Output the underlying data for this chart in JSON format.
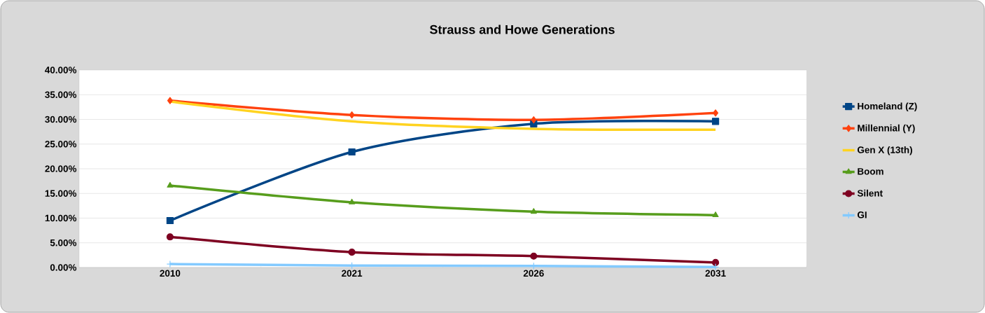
{
  "chart_data": {
    "type": "line",
    "title": "Strauss and Howe Generations",
    "categories": [
      "2010",
      "2021",
      "2026",
      "2031"
    ],
    "series": [
      {
        "name": "Homeland (Z)",
        "color": "#004586",
        "marker": "square",
        "values": [
          9.5,
          23.4,
          29.1,
          29.6
        ]
      },
      {
        "name": "Millennial (Y)",
        "color": "#ff420e",
        "marker": "diamond",
        "values": [
          33.8,
          30.9,
          29.9,
          31.3
        ]
      },
      {
        "name": "Gen X (13th)",
        "color": "#ffd320",
        "marker": "none",
        "values": [
          33.6,
          29.6,
          28.1,
          27.9
        ]
      },
      {
        "name": "Boom",
        "color": "#579d1c",
        "marker": "triangle",
        "values": [
          16.6,
          13.2,
          11.3,
          10.6
        ]
      },
      {
        "name": "Silent",
        "color": "#7e0021",
        "marker": "circle",
        "values": [
          6.2,
          3.1,
          2.3,
          1.0
        ]
      },
      {
        "name": "GI",
        "color": "#83caff",
        "marker": "cross",
        "values": [
          0.7,
          0.4,
          0.3,
          0.1
        ]
      }
    ],
    "ylim": [
      0,
      40
    ],
    "yticks": [
      {
        "value": 0,
        "label": "0.00%"
      },
      {
        "value": 5,
        "label": "5.00%"
      },
      {
        "value": 10,
        "label": "10.00%"
      },
      {
        "value": 15,
        "label": "15.00%"
      },
      {
        "value": 20,
        "label": "20.00%"
      },
      {
        "value": 25,
        "label": "25.00%"
      },
      {
        "value": 30,
        "label": "30.00%"
      },
      {
        "value": 35,
        "label": "35.00%"
      },
      {
        "value": 40,
        "label": "40.00%"
      }
    ],
    "grid": "y",
    "legend": "right"
  }
}
